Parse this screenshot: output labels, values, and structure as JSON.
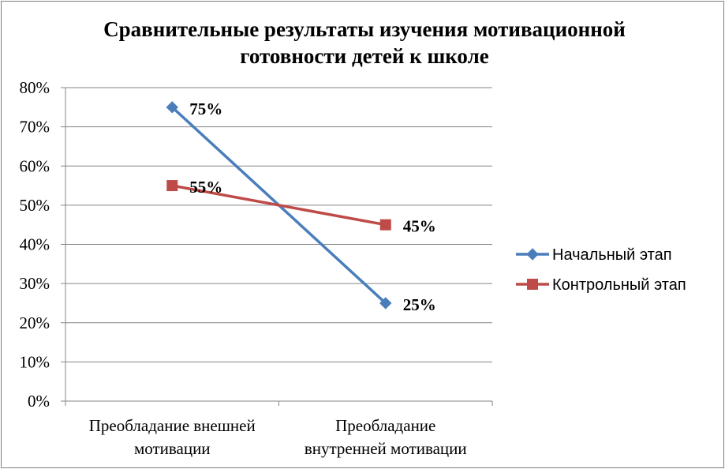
{
  "chart_data": {
    "type": "line",
    "title": [
      "Сравнительные результаты изучения мотивационной",
      "готовности детей к школе"
    ],
    "categories": [
      [
        "Преобладание внешней",
        "мотивации"
      ],
      [
        "Преобладание",
        "внутренней мотивации"
      ]
    ],
    "series": [
      {
        "name": "Начальный этап",
        "values": [
          75,
          25
        ],
        "labels": [
          "75%",
          "25%"
        ],
        "color": "#4a7ebb",
        "marker": "diamond"
      },
      {
        "name": "Контрольный этап",
        "values": [
          55,
          45
        ],
        "labels": [
          "55%",
          "45%"
        ],
        "color": "#be4b48",
        "marker": "square"
      }
    ],
    "y_ticks": [
      "0%",
      "10%",
      "20%",
      "30%",
      "40%",
      "50%",
      "60%",
      "70%",
      "80%"
    ],
    "ylim": [
      0,
      80
    ],
    "grid": true,
    "legend": "right"
  }
}
